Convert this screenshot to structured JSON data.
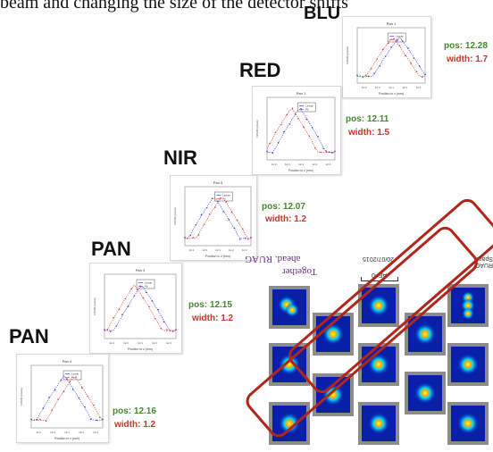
{
  "header_text": "beam and changing the size of the detector shifts",
  "panels": [
    {
      "id": "blu",
      "band": "BLU",
      "pos": "pos: 12.28",
      "width": "width: 1.7",
      "title": "Pan 1",
      "legend": [
        "Linear",
        "Fit"
      ],
      "xlabel": "Position in z (mm)",
      "ylabel": "FWHM (pixels)",
      "xticks": [
        "11.9",
        "12.0",
        "12.1",
        "12.2",
        "12.3"
      ]
    },
    {
      "id": "red",
      "band": "RED",
      "pos": "pos: 12.11",
      "width": "width: 1.5",
      "title": "Pan 1",
      "legend": [
        "Linear",
        "Fit"
      ],
      "xlabel": "Position in z (mm)",
      "ylabel": "FWHM (pixels)",
      "xticks": [
        "11.9",
        "12.0",
        "12.1",
        "12.2",
        "12.3"
      ]
    },
    {
      "id": "nir",
      "band": "NIR",
      "pos": "pos: 12.07",
      "width": "width: 1.2",
      "title": "Pan 4",
      "legend": [
        "Linear",
        "Fit"
      ],
      "xlabel": "Position in z (mm)",
      "ylabel": "FWHM (pixels)",
      "xticks": [
        "11.9",
        "12.0",
        "12.1",
        "12.2",
        "12.3"
      ]
    },
    {
      "id": "pan2",
      "band": "PAN",
      "pos": "pos: 12.15",
      "width": "width: 1.2",
      "title": "Pan 3",
      "legend": [
        "Linear",
        "Fit"
      ],
      "xlabel": "Position in z (mm)",
      "ylabel": "FWHM (pixels)",
      "xticks": [
        "11.9",
        "12.0",
        "12.1",
        "12.2",
        "12.3"
      ]
    },
    {
      "id": "pan1",
      "band": "PAN",
      "pos": "pos: 12.16",
      "width": "width: 1.2",
      "title": "Pan 4",
      "legend": [
        "Linear",
        "Fit"
      ],
      "xlabel": "Position in z (mm)",
      "ylabel": "FWHM (pixels)",
      "xticks": [
        "11.9",
        "12.0",
        "12.1",
        "12.2",
        "12.3"
      ]
    }
  ],
  "spot_image": {
    "logo_line1": "Together",
    "logo_line2": "ahead. RUAG",
    "date_label": "20/07/2015",
    "center_label": "AF=0",
    "ruag_label": "RUAG Space"
  },
  "colors": {
    "pos": "#3f8a2a",
    "width": "#c0392b",
    "series_a": "#4040e0",
    "series_b": "#e04040",
    "box": "#b0261a"
  }
}
